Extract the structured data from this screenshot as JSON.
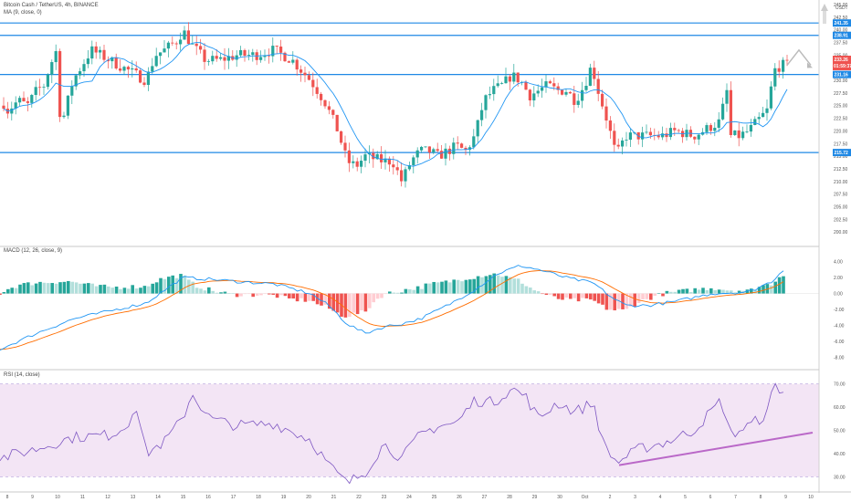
{
  "symbol_title": "Bitcoin Cash / TetherUS, 4h, BINANCE",
  "ma_legend": "MA (9, close, 0)",
  "macd_legend": "MACD (12, 26, close, 9)",
  "rsi_legend": "RSI (14, close)",
  "currency_label": "USDT",
  "colors": {
    "up": "#26a69a",
    "down": "#ef5350",
    "macd_hist_up_strong": "#26a69a",
    "macd_hist_up_weak": "#b2dfdb",
    "macd_hist_down_strong": "#ef5350",
    "macd_hist_down_weak": "#ffcdd2",
    "macd_line": "#2196f3",
    "signal_line": "#ff6d00",
    "ma_line": "#2196f3",
    "hline": "#1e88e5",
    "rsi_line": "#7e57c2",
    "rsi_band": "#f3e5f5",
    "trend_line": "#ba68c8",
    "current_tag": "#ef5350",
    "level_tag": "#1e88e5"
  },
  "chart_data": [
    {
      "type": "candlestick",
      "panel": "price",
      "ylim": [
        197.5,
        245
      ],
      "y_ticks": [
        "245.00",
        "242.50",
        "240.00",
        "237.50",
        "235.00",
        "232.50",
        "230.00",
        "227.50",
        "225.00",
        "222.50",
        "220.00",
        "217.50",
        "215.00",
        "212.50",
        "210.00",
        "207.50",
        "205.00",
        "202.50",
        "200.00"
      ],
      "horizontal_levels": [
        241.35,
        238.91,
        231.16,
        215.72
      ],
      "level_labels": [
        "241.35",
        "238.91",
        "231.16",
        "215.72"
      ],
      "current_price": 233.26,
      "current_label": "233.26",
      "countdown_label": "01:59:37",
      "x_labels": [
        "8",
        "9",
        "10",
        "11",
        "12",
        "13",
        "14",
        "15",
        "16",
        "17",
        "18",
        "19",
        "20",
        "21",
        "22",
        "23",
        "24",
        "25",
        "26",
        "27",
        "28",
        "29",
        "30",
        "Oct",
        "2",
        "3",
        "4",
        "5",
        "6",
        "7",
        "8",
        "9",
        "10"
      ],
      "ma_label": "MA (9, close, 0)"
    },
    {
      "type": "line",
      "panel": "macd",
      "title": "MACD (12, 26, close, 9)",
      "ylim": [
        -9,
        5
      ],
      "y_ticks": [
        "4.00",
        "2.00",
        "0.00",
        "-2.00",
        "-4.00",
        "-6.00",
        "-8.00"
      ]
    },
    {
      "type": "line",
      "panel": "rsi",
      "title": "RSI (14, close)",
      "ylim": [
        25,
        75
      ],
      "y_ticks": [
        "70.00",
        "60.00",
        "50.00",
        "40.00",
        "30.00"
      ],
      "band": [
        30,
        70
      ]
    }
  ]
}
